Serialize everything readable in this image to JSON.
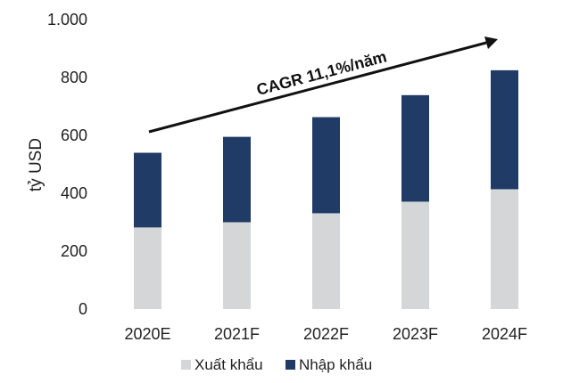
{
  "chart_data": {
    "type": "bar",
    "stacked": true,
    "categories": [
      "2020E",
      "2021F",
      "2022F",
      "2023F",
      "2024F"
    ],
    "series": [
      {
        "name": "Xuất khẩu",
        "values": [
          282,
          300,
          331,
          371,
          414
        ],
        "color": "#d4d6d8"
      },
      {
        "name": "Nhập khẩu",
        "values": [
          258,
          295,
          332,
          368,
          411
        ],
        "color": "#1f3b66"
      }
    ],
    "ylabel": "tỷ USD",
    "ylim": [
      0,
      1000
    ],
    "yticks": [
      0,
      200,
      400,
      600,
      800,
      1000
    ],
    "ytick_labels": [
      "0",
      "200",
      "400",
      "600",
      "800",
      "1.000"
    ],
    "grid": false,
    "legend_position": "bottom",
    "annotation": "CAGR 11,1%/năm"
  }
}
